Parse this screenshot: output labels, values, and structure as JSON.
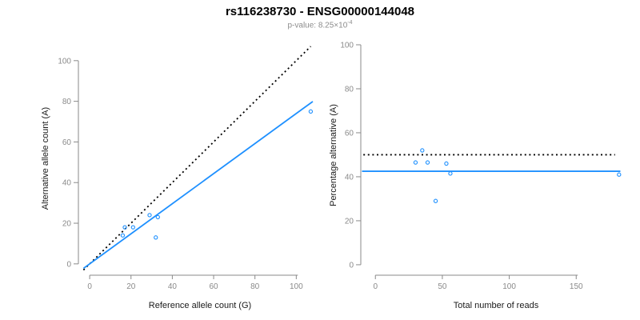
{
  "title": "rs116238730 - ENSG00000144048",
  "subtitle": {
    "text": "p-value: 8.25×10",
    "exponent": "-4"
  },
  "colors": {
    "accent_blue": "#1E90FF",
    "line_black": "#000000",
    "axis_gray": "#8a8a8a",
    "tick_label_gray": "#8a8a8a",
    "axis_title_dark": "#1a1a1a",
    "subtitle_gray": "#8c8c8c"
  },
  "chart_data": [
    {
      "type": "scatter",
      "panel": "left",
      "xlabel": "Reference allele count (G)",
      "ylabel": "Alternative allele count (A)",
      "xticks": [
        0,
        20,
        40,
        60,
        80,
        100
      ],
      "yticks": [
        0,
        20,
        40,
        60,
        80,
        100
      ],
      "xlim": [
        -4.3,
        111.1
      ],
      "ylim": [
        -4.0,
        107.8
      ],
      "grid": false,
      "legend": "none",
      "point_style": {
        "shape": "open-circle",
        "color": "#1E90FF"
      },
      "points": [
        [
          16,
          14
        ],
        [
          17,
          18
        ],
        [
          21,
          18
        ],
        [
          29,
          24
        ],
        [
          32,
          13
        ],
        [
          33,
          23
        ],
        [
          107,
          75
        ]
      ],
      "lines": [
        {
          "name": "identity-line",
          "style": "dotted",
          "color": "#000000",
          "x": [
            -3,
            107
          ],
          "y": [
            -3,
            107
          ]
        },
        {
          "name": "fit-line",
          "style": "solid",
          "color": "#1E90FF",
          "x": [
            -3,
            108
          ],
          "y": [
            -2.2,
            79.9
          ]
        }
      ]
    },
    {
      "type": "scatter",
      "panel": "right",
      "xlabel": "Total number of reads",
      "ylabel": "Percentage alternative (A)",
      "xticks": [
        0,
        50,
        100,
        150
      ],
      "yticks": [
        0,
        20,
        40,
        60,
        80,
        100
      ],
      "xlim": [
        -10.9,
        185.7
      ],
      "ylim": [
        -3.3,
        102.9
      ],
      "grid": false,
      "legend": "none",
      "point_style": {
        "shape": "open-circle",
        "color": "#1E90FF"
      },
      "points": [
        [
          30,
          46.5
        ],
        [
          35,
          52
        ],
        [
          39,
          46.5
        ],
        [
          45,
          29
        ],
        [
          53,
          46
        ],
        [
          56,
          41.5
        ],
        [
          182,
          41
        ]
      ],
      "lines": [
        {
          "name": "expected-ratio-line",
          "style": "dotted",
          "color": "#000000",
          "x": [
            -9,
            179
          ],
          "y": [
            50,
            50
          ]
        },
        {
          "name": "observed-ratio-line",
          "style": "solid",
          "color": "#1E90FF",
          "x": [
            -10,
            183
          ],
          "y": [
            42.5,
            42.5
          ]
        }
      ]
    }
  ]
}
